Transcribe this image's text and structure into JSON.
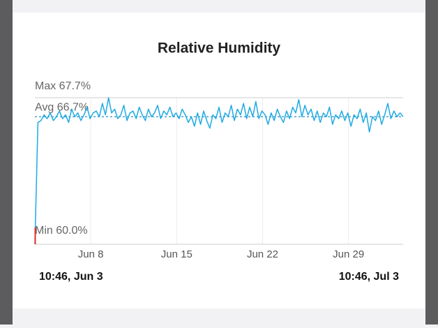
{
  "chart_data": {
    "type": "line",
    "title": "Relative Humidity",
    "xlim": [
      0,
      30
    ],
    "xticks": [
      {
        "value": 4.55,
        "label": "Jun 8"
      },
      {
        "value": 11.55,
        "label": "Jun 15"
      },
      {
        "value": 18.55,
        "label": "Jun 22"
      },
      {
        "value": 25.55,
        "label": "Jun 29"
      }
    ],
    "ylim": [
      60,
      67.7
    ],
    "yticks": [
      {
        "value": 60,
        "label": "Min 60.0%"
      },
      {
        "value": 66.7,
        "label": "Avg 66.7%"
      },
      {
        "value": 67.7,
        "label": "Max 67.7%"
      }
    ],
    "start_label": "10:46,  Jun 3",
    "end_label": "10:46,  Jul 3",
    "grid": true,
    "series": [
      {
        "color": "#1eaae2",
        "values": [
          60,
          66.4,
          66.5,
          66.8,
          66.6,
          66.9,
          66.5,
          66.7,
          67.0,
          66.6,
          66.8,
          66.4,
          67.1,
          66.7,
          66.9,
          66.5,
          66.8,
          67.2,
          66.6,
          66.9,
          67.0,
          66.7,
          67.4,
          66.8,
          67.7,
          66.9,
          67.1,
          66.6,
          66.8,
          67.3,
          66.5,
          66.9,
          67.0,
          66.6,
          67.2,
          66.8,
          66.5,
          67.1,
          66.7,
          66.9,
          67.3,
          66.6,
          67.0,
          66.8,
          67.2,
          66.7,
          66.9,
          66.6,
          67.1,
          66.8,
          66.4,
          66.7,
          66.2,
          66.9,
          66.3,
          67.0,
          66.5,
          66.1,
          66.8,
          66.6,
          67.2,
          66.4,
          66.9,
          66.7,
          67.3,
          66.5,
          67.1,
          66.8,
          67.4,
          66.6,
          67.2,
          66.7,
          67.5,
          66.6,
          67.0,
          66.8,
          66.3,
          66.9,
          66.5,
          67.1,
          66.7,
          66.4,
          67.0,
          66.6,
          67.2,
          66.9,
          67.6,
          66.7,
          67.3,
          66.8,
          67.1,
          66.5,
          67.0,
          66.4,
          66.9,
          66.7,
          67.2,
          66.3,
          66.8,
          66.6,
          67.0,
          66.5,
          66.9,
          66.2,
          66.8,
          66.6,
          67.1,
          66.4,
          66.9,
          65.9,
          66.7,
          66.5,
          67.0,
          66.3,
          66.8,
          67.4,
          66.6,
          67.0,
          66.7,
          66.9,
          66.7
        ]
      }
    ]
  }
}
